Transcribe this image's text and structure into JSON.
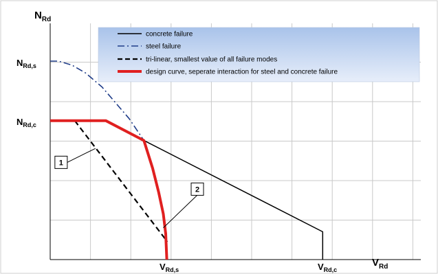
{
  "chart_data": {
    "type": "line",
    "title": "",
    "axes": {
      "y_label": {
        "main": "N",
        "sub": "Rd"
      },
      "x_label": {
        "main": "V",
        "sub": "Rd"
      },
      "y_ticks": [
        {
          "main": "N",
          "sub": "Rd,s",
          "value": 1.0
        },
        {
          "main": "N",
          "sub": "Rd,c",
          "value": 0.7
        }
      ],
      "x_ticks": [
        {
          "main": "V",
          "sub": "Rd,s",
          "value": 0.43
        },
        {
          "main": "V",
          "sub": "Rd,c",
          "value": 1.0
        }
      ],
      "xlim": [
        0,
        1.36
      ],
      "ylim": [
        0,
        1.0
      ],
      "grid": true
    },
    "legend": {
      "position": "top-right",
      "items": [
        {
          "key": "concrete",
          "label": "concrete failure"
        },
        {
          "key": "steel",
          "label": "steel failure"
        },
        {
          "key": "trilinear",
          "label": "tri-linear, smallest value of all failure modes"
        },
        {
          "key": "design",
          "label": "design curve, seperate interaction for steel and concrete failure"
        }
      ]
    },
    "series": [
      {
        "key": "concrete",
        "color": "#000000",
        "style": "solid",
        "points": [
          [
            0,
            0.7
          ],
          [
            0.204,
            0.7
          ],
          [
            0.344,
            0.6
          ],
          [
            1.0,
            0.14
          ],
          [
            1.0,
            0.0
          ]
        ]
      },
      {
        "key": "steel",
        "color": "#1f3c88",
        "style": "dash-dot",
        "points": [
          [
            0,
            1.0
          ],
          [
            0.03,
            1.0
          ],
          [
            0.08,
            0.98
          ],
          [
            0.13,
            0.94
          ],
          [
            0.19,
            0.87
          ],
          [
            0.24,
            0.79
          ],
          [
            0.29,
            0.71
          ],
          [
            0.344,
            0.6
          ]
        ]
      },
      {
        "key": "trilinear",
        "color": "#000000",
        "style": "dashed",
        "points": [
          [
            0.09,
            0.7
          ],
          [
            0.43,
            0.09
          ]
        ]
      },
      {
        "key": "design",
        "color": "#e02020",
        "style": "solid-thick",
        "points": [
          [
            0,
            0.7
          ],
          [
            0.204,
            0.7
          ],
          [
            0.344,
            0.6
          ],
          [
            0.376,
            0.46
          ],
          [
            0.398,
            0.34
          ],
          [
            0.415,
            0.23
          ],
          [
            0.424,
            0.13
          ],
          [
            0.428,
            0.0
          ]
        ]
      }
    ],
    "annotations": [
      {
        "label": "1",
        "box": [
          0.04,
          0.49
        ],
        "target": [
          0.166,
          0.56
        ]
      },
      {
        "label": "2",
        "box": [
          0.54,
          0.355
        ],
        "target": [
          0.415,
          0.16
        ]
      }
    ]
  }
}
